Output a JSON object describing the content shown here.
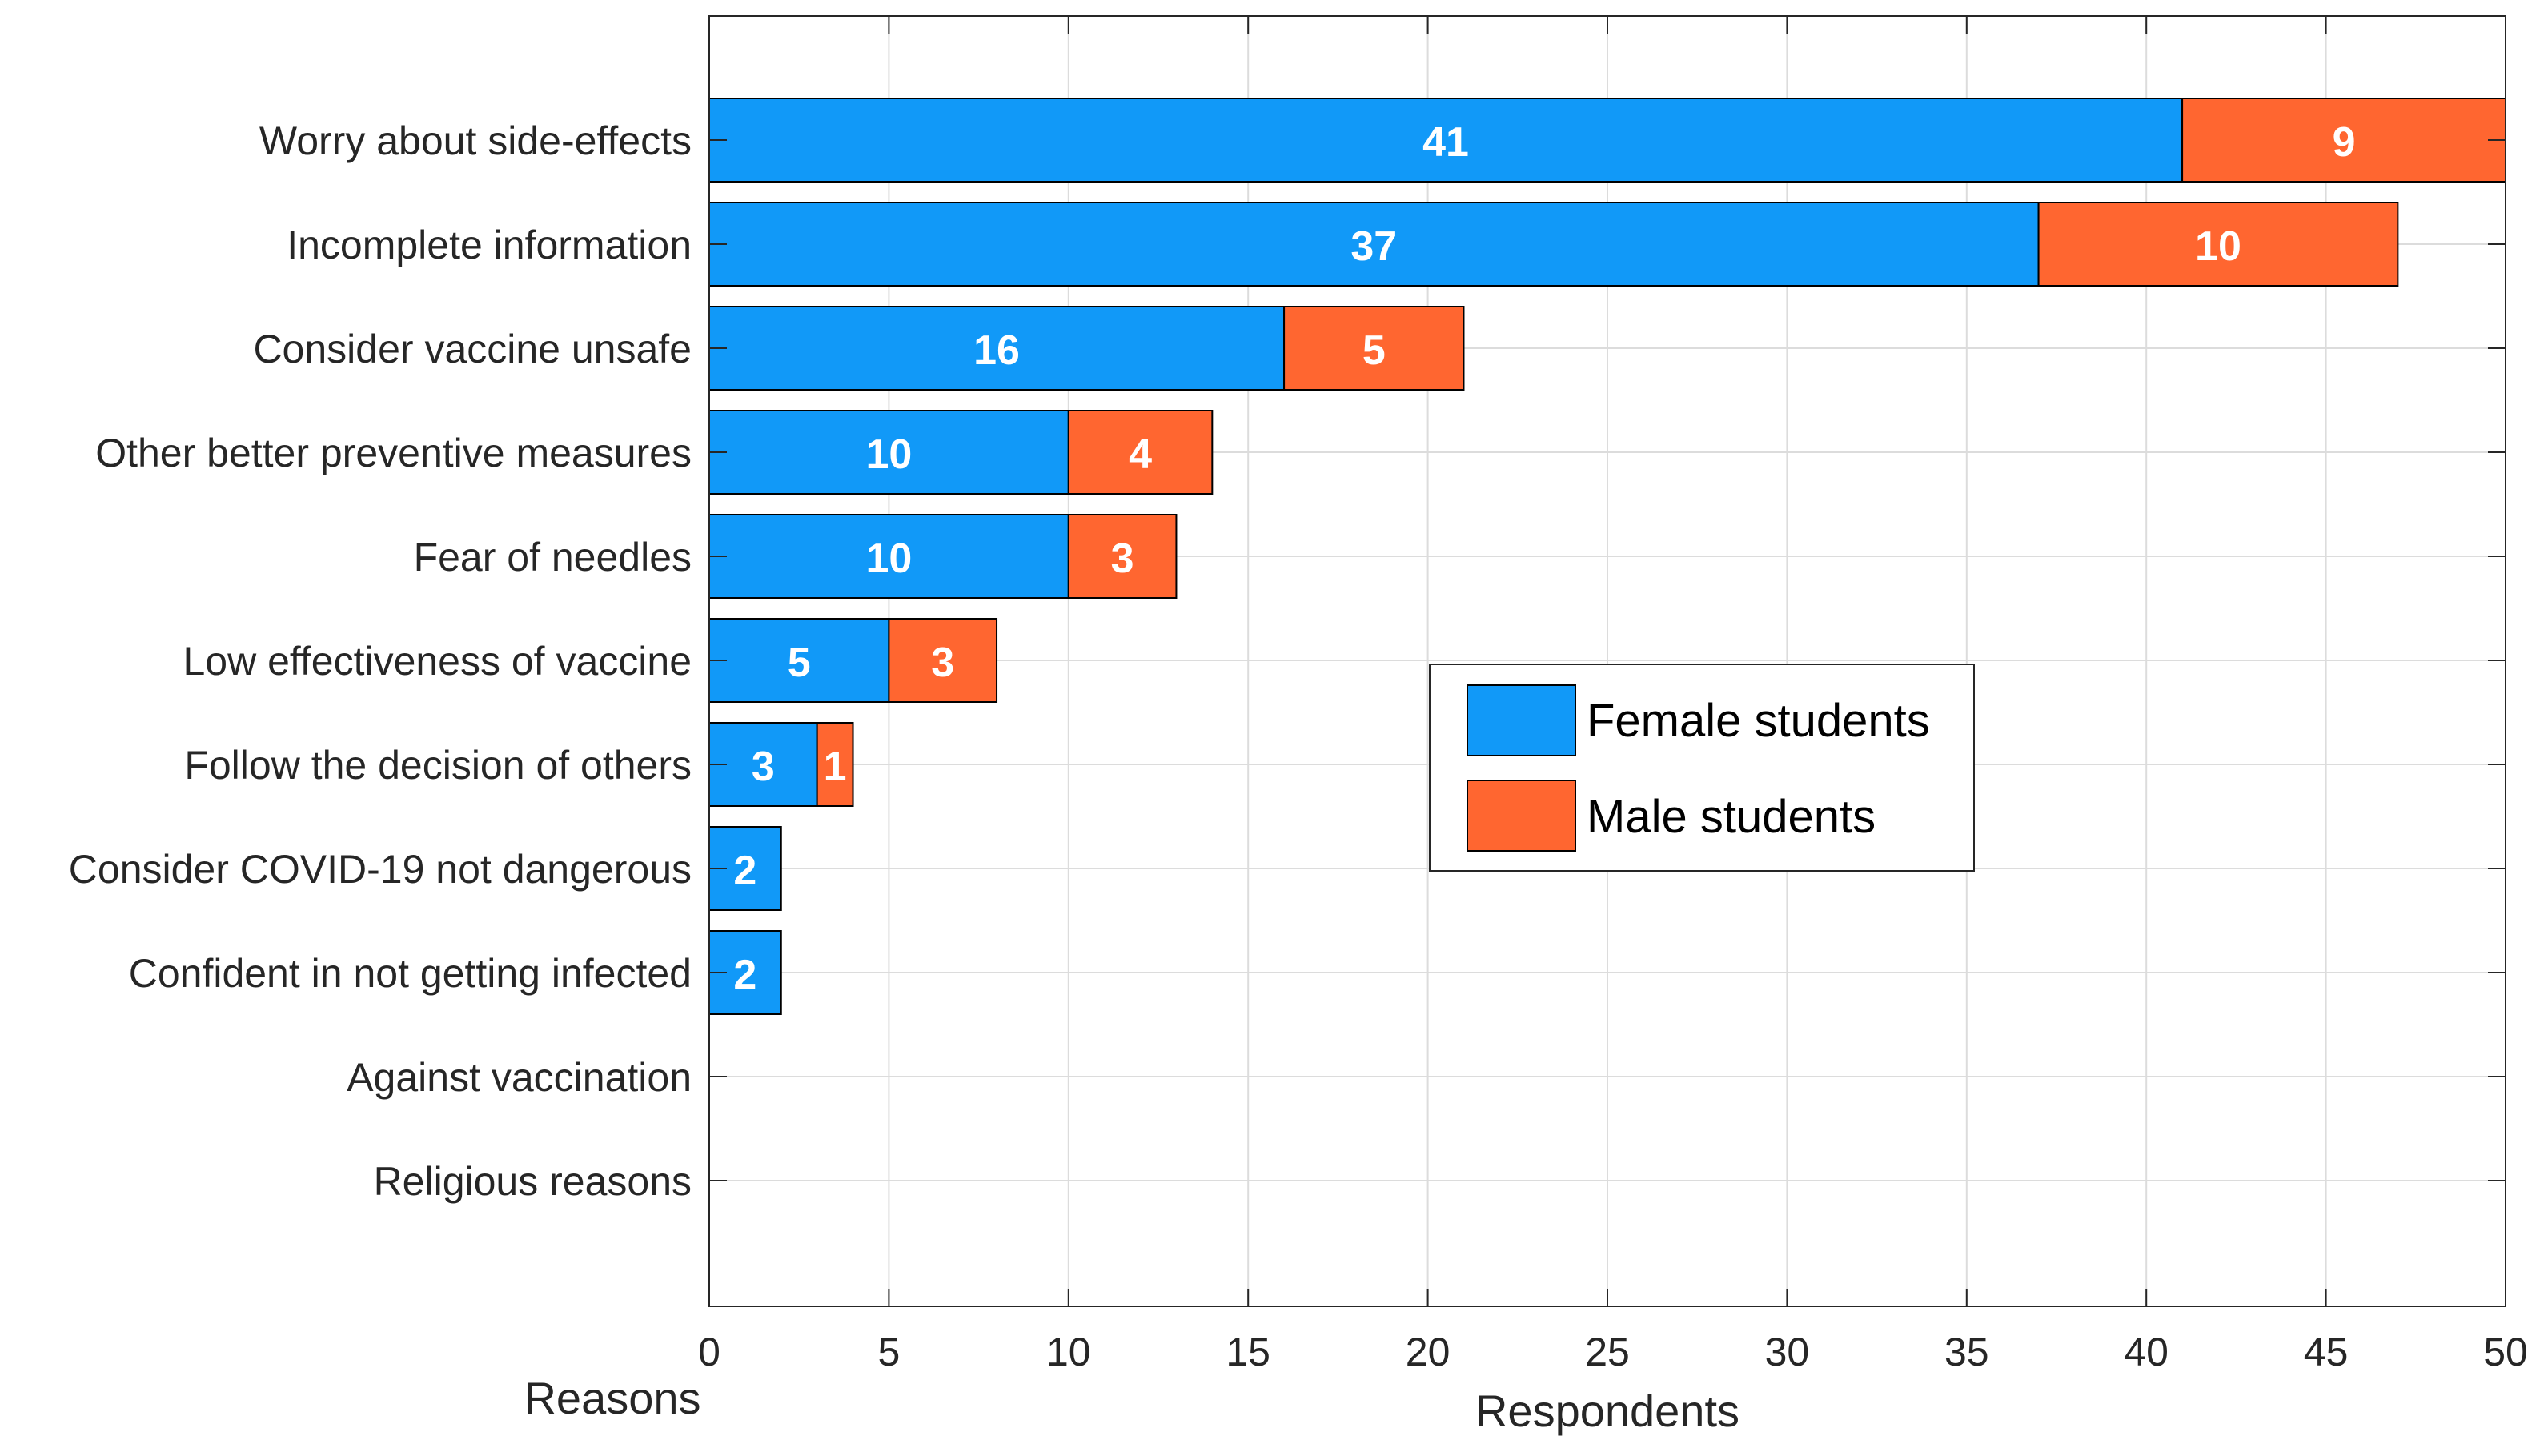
{
  "chart_data": {
    "type": "bar",
    "orientation": "horizontal",
    "stacked": true,
    "categories": [
      "Worry about side-effects",
      "Incomplete information",
      "Consider vaccine unsafe",
      "Other better preventive measures",
      "Fear of needles",
      "Low effectiveness of vaccine",
      "Follow the decision of others",
      "Consider COVID-19 not dangerous",
      "Confident in not getting infected",
      "Against vaccination",
      "Religious reasons"
    ],
    "series": [
      {
        "name": "Female students",
        "color": "#1199F8",
        "values": [
          41,
          37,
          16,
          10,
          10,
          5,
          3,
          2,
          2,
          0,
          0
        ]
      },
      {
        "name": "Male students",
        "color": "#FF6630",
        "values": [
          9,
          10,
          5,
          4,
          3,
          3,
          1,
          0,
          0,
          0,
          0
        ]
      }
    ],
    "xlabel": "Respondents",
    "ylabel": "Reasons",
    "xlim": [
      0,
      50
    ],
    "xticks": [
      0,
      5,
      10,
      15,
      20,
      25,
      30,
      35,
      40,
      45,
      50
    ],
    "grid": true,
    "legend_position": "center-right"
  }
}
